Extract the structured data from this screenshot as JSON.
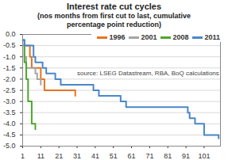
{
  "chart_data": {
    "type": "line",
    "title": "Interest rate cut cycles",
    "subtitle": "(nos months from first cut to last, cumulative percentage point reduction)",
    "annotation": "source: LSEG Datastream, RBA, BoQ calculations",
    "line_style": "step",
    "legend": "top-right",
    "grid": true,
    "xlim": [
      1,
      110
    ],
    "xticks": [
      1,
      11,
      21,
      31,
      41,
      51,
      61,
      71,
      81,
      91,
      101
    ],
    "ylim": [
      -5,
      0
    ],
    "yticks": [
      {
        "value": 0,
        "label": "0.0"
      },
      -0.5,
      {
        "value": -1,
        "label": "-1.0"
      },
      -1.5,
      {
        "value": -2,
        "label": "-2.0"
      },
      -2.5,
      {
        "value": -3,
        "label": "-3.0"
      },
      -3.5,
      {
        "value": -4,
        "label": "-4.0"
      },
      -4.5,
      {
        "value": -5,
        "label": "-5.0"
      }
    ],
    "series": [
      {
        "name": "1996",
        "color": "#e8731e",
        "x": [
          1,
          5,
          6,
          11,
          13,
          30
        ],
        "values": [
          -0.5,
          -1.0,
          -1.5,
          -2.0,
          -2.5,
          -2.75
        ]
      },
      {
        "name": "2001",
        "color": "#a5a5a5",
        "x": [
          1,
          2,
          3,
          8,
          9,
          11
        ],
        "values": [
          -0.5,
          -1.0,
          -1.5,
          -1.75,
          -2.0,
          -2.25
        ]
      },
      {
        "name": "2008",
        "color": "#4ea72e",
        "x": [
          1,
          2,
          3,
          4,
          6,
          8
        ],
        "values": [
          -0.25,
          -1.25,
          -2.0,
          -3.0,
          -4.0,
          -4.25
        ]
      },
      {
        "name": "2011",
        "color": "#4a86c8",
        "x": [
          1,
          2,
          7,
          8,
          12,
          14,
          19,
          22,
          40,
          43,
          55,
          58,
          92,
          93,
          96,
          101,
          109
        ],
        "values": [
          -0.25,
          -0.5,
          -1.0,
          -1.25,
          -1.5,
          -1.75,
          -2.0,
          -2.25,
          -2.5,
          -2.75,
          -3.0,
          -3.25,
          -3.5,
          -3.75,
          -4.0,
          -4.5,
          -4.65
        ]
      }
    ]
  }
}
